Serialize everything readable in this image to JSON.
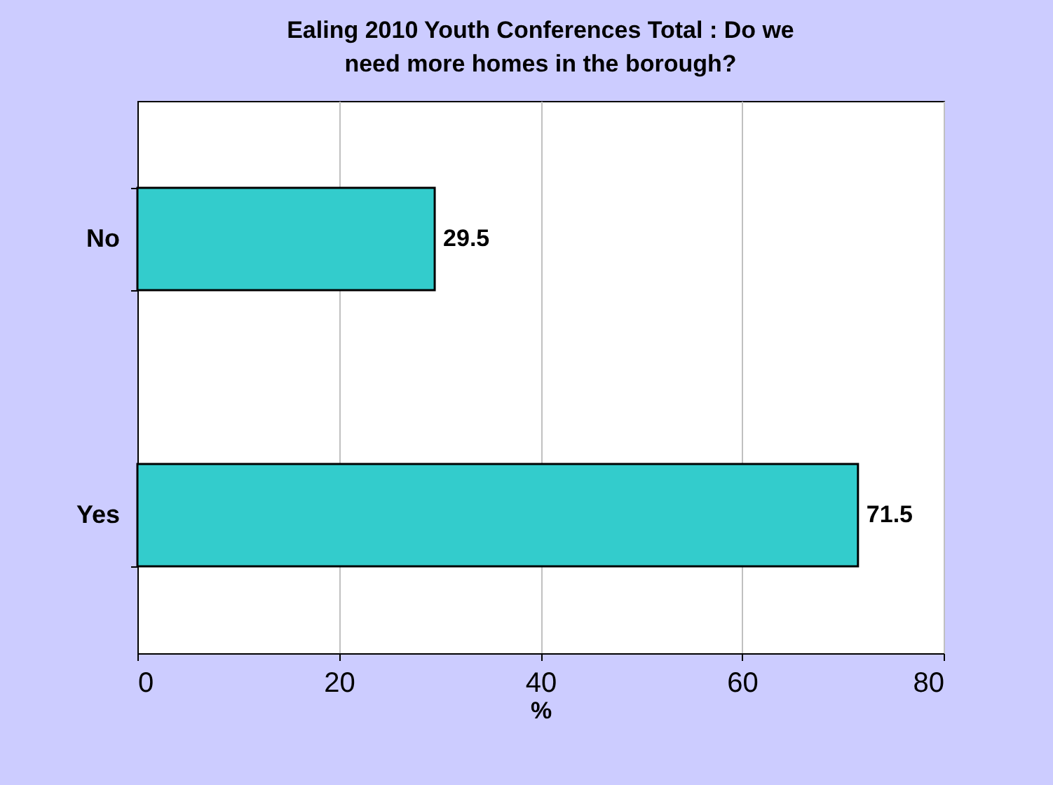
{
  "chart_data": {
    "type": "bar",
    "orientation": "horizontal",
    "title": "Ealing 2010 Youth Conferences Total : Do we need more homes in the borough?",
    "xlabel": "%",
    "categories": [
      "No",
      "Yes"
    ],
    "values": [
      29.5,
      71.5
    ],
    "color": "#33cccc",
    "xlim": [
      0,
      80
    ],
    "xticks": [
      0,
      20,
      40,
      60,
      80
    ],
    "grid": "x",
    "data_labels": true
  }
}
